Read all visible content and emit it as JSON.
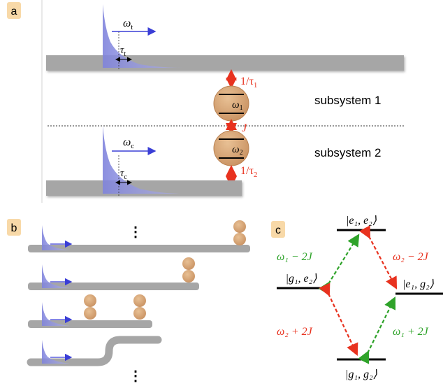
{
  "panels": {
    "a": {
      "label": "a",
      "omega_t": "ω",
      "omega_t_sub": "t",
      "tau_t": "τ",
      "tau_t_sub": "t",
      "omega_c": "ω",
      "omega_c_sub": "c",
      "tau_c": "τ",
      "tau_c_sub": "c",
      "rate1_prefix": "1/τ",
      "rate1_sub": "1",
      "rate2_prefix": "1/τ",
      "rate2_sub": "2",
      "coupling": "J",
      "atom1": "ω",
      "atom1_sub": "1",
      "atom2": "ω",
      "atom2_sub": "2",
      "subsystem1": "subsystem 1",
      "subsystem2": "subsystem 2"
    },
    "b": {
      "label": "b",
      "ellipsis_top": "⋮",
      "ellipsis_bottom": "⋮"
    },
    "c": {
      "label": "c",
      "state_e1e2": "|e₁, e₂⟩",
      "state_g1e2": "|g₁, e₂⟩",
      "state_e1g2": "|e₁, g₂⟩",
      "state_g1g2": "|g₁, g₂⟩",
      "freq_w1m2J": "ω₁ − 2J",
      "freq_w2m2J": "ω₂ − 2J",
      "freq_w2p2J": "ω₂ + 2J",
      "freq_w1p2J": "ω₁ + 2J"
    }
  },
  "colors": {
    "panel_label_bg": "#f8d9a8",
    "waveguide": "#a6a6a6",
    "pulse": "#8f92e0",
    "atom": "#d9a878",
    "red": "#e8321f",
    "green": "#2fa32a",
    "blue_arrow": "#3a3ed6"
  }
}
